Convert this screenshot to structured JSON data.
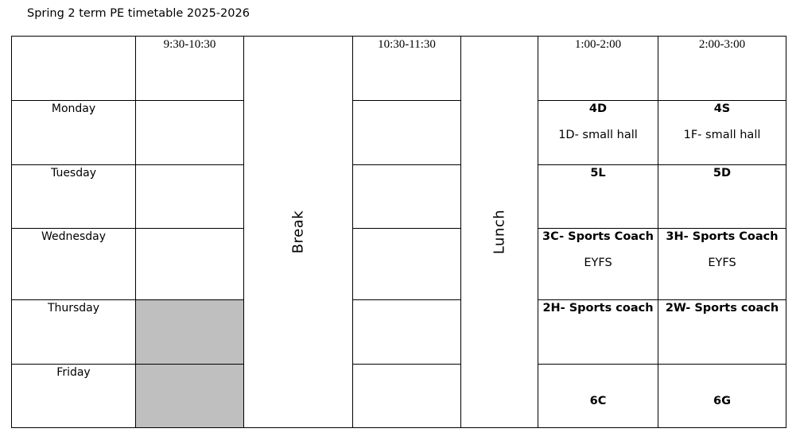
{
  "title": "Spring 2 term PE timetable 2025-2026",
  "headers": [
    "9:30-10:30",
    "10:30-11:30",
    "1:00-2:00",
    "2:00-3:00"
  ],
  "break_label": "Break",
  "lunch_label": "Lunch",
  "days": [
    "Monday",
    "Tuesday",
    "Wednesday",
    "Thursday",
    "Friday"
  ],
  "afternoon": {
    "monday": {
      "p1_line1": "4D",
      "p1_line2": "1D- small hall",
      "p2_line1": "4S",
      "p2_line2": "1F- small hall"
    },
    "tuesday": {
      "p1": "5L",
      "p2": "5D"
    },
    "wednesday": {
      "p1_line1": "3C- Sports Coach",
      "p1_line2": "EYFS",
      "p2_line1": "3H- Sports Coach",
      "p2_line2": "EYFS"
    },
    "thursday": {
      "p1": "2H- Sports coach",
      "p2": "2W- Sports coach"
    },
    "friday": {
      "p1": "6C",
      "p2": "6G"
    }
  },
  "colors": {
    "shaded_cell": "#bfbfbf",
    "border": "#000000"
  }
}
